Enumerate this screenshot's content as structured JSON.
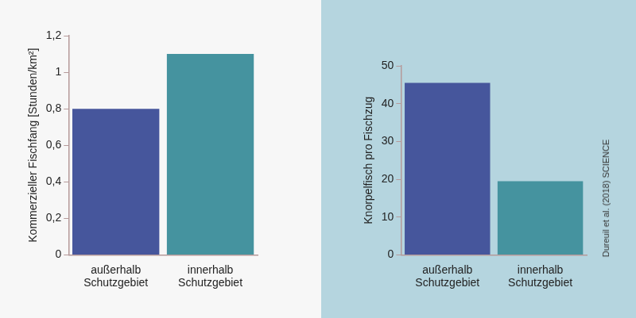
{
  "chart_data": [
    {
      "type": "bar",
      "y_label": "Kommerzieller Fischfang [Stunden/km²]",
      "categories": [
        "außerhalb\nSchutzgebiet",
        "innerhalb\nSchutzgebiet"
      ],
      "values": [
        0.8,
        1.1
      ],
      "colors": [
        "#46569c",
        "#45939f"
      ],
      "ylim": [
        0,
        1.2
      ],
      "yticks": [
        0,
        {
          "value": 0.2,
          "label": "0,2"
        },
        {
          "value": 0.4,
          "label": "0,4"
        },
        {
          "value": 0.6,
          "label": "0,6"
        },
        {
          "value": 0.8,
          "label": "0,8"
        },
        1,
        {
          "value": 1.2,
          "label": "1,2"
        }
      ],
      "grid": false
    },
    {
      "type": "bar",
      "y_label": "Knorpelfisch pro Fischzug",
      "categories": [
        "außerhalb\nSchutzgebiet",
        "innerhalb\nSchutzgebiet"
      ],
      "values": [
        45.5,
        19.5
      ],
      "colors": [
        "#46569c",
        "#45939f"
      ],
      "ylim": [
        0,
        50
      ],
      "yticks": [
        0,
        10,
        20,
        30,
        40,
        50
      ],
      "grid": false,
      "annotation": "Dureuil et al. (2018) SCIENCE"
    }
  ]
}
